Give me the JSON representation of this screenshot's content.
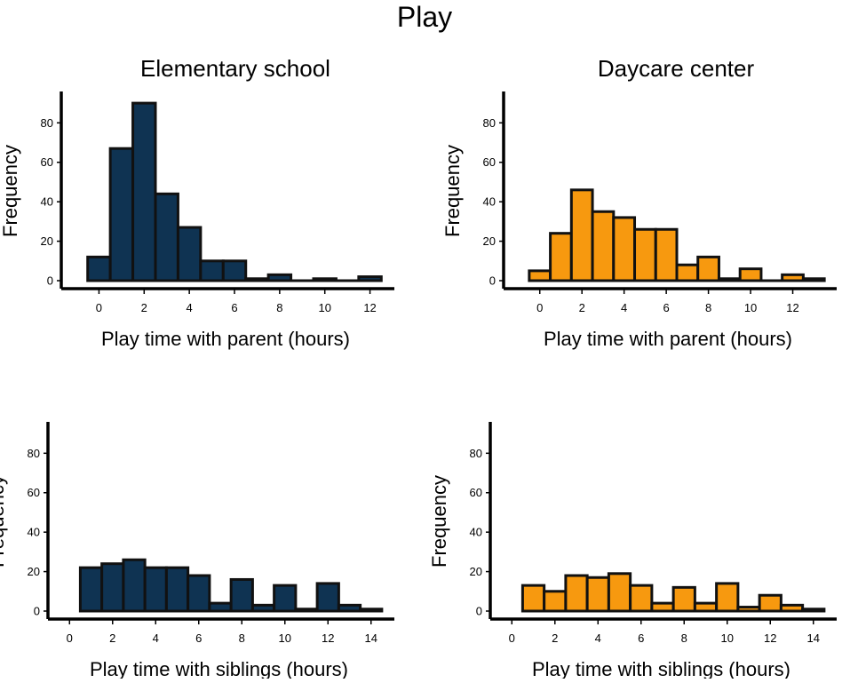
{
  "title": "Play",
  "column_titles": [
    "Elementary school",
    "Daycare center"
  ],
  "colors": {
    "elementary": "#0f3352",
    "daycare": "#f7990f",
    "outline": "#111111"
  },
  "chart_data": [
    {
      "type": "bar",
      "panel": "top-left",
      "group": "Elementary school",
      "xlabel": "Play time with parent (hours)",
      "ylabel": "Frequency",
      "bin_start": -0.5,
      "bin_width": 1,
      "values": [
        12,
        67,
        90,
        44,
        27,
        10,
        10,
        1,
        3,
        0,
        1,
        0,
        2
      ],
      "xticks": [
        0,
        2,
        4,
        6,
        8,
        10,
        12
      ],
      "yticks": [
        0,
        20,
        40,
        60,
        80
      ],
      "xlim": [
        -1,
        13
      ],
      "ylim": [
        0,
        95
      ]
    },
    {
      "type": "bar",
      "panel": "top-right",
      "group": "Daycare center",
      "xlabel": "Play time with parent (hours)",
      "ylabel": "Frequency",
      "bin_start": -0.5,
      "bin_width": 1,
      "values": [
        5,
        24,
        46,
        35,
        32,
        26,
        26,
        8,
        12,
        1,
        6,
        0,
        3,
        1
      ],
      "xticks": [
        0,
        2,
        4,
        6,
        8,
        10,
        12
      ],
      "yticks": [
        0,
        20,
        40,
        60,
        80
      ],
      "xlim": [
        -1,
        14
      ],
      "ylim": [
        0,
        95
      ]
    },
    {
      "type": "bar",
      "panel": "bottom-left",
      "group": "Elementary school",
      "xlabel": "Play time with siblings (hours)",
      "ylabel": "Frequency",
      "bin_start": 0.5,
      "bin_width": 1,
      "values": [
        22,
        24,
        26,
        22,
        22,
        18,
        4,
        16,
        3,
        13,
        1,
        14,
        3,
        1
      ],
      "xticks": [
        0,
        2,
        4,
        6,
        8,
        10,
        12,
        14
      ],
      "yticks": [
        0,
        20,
        40,
        60,
        80
      ],
      "xlim": [
        -0.3,
        15
      ],
      "ylim": [
        0,
        95
      ]
    },
    {
      "type": "bar",
      "panel": "bottom-right",
      "group": "Daycare center",
      "xlabel": "Play time with siblings (hours)",
      "ylabel": "Frequency",
      "bin_start": 0.5,
      "bin_width": 1,
      "values": [
        13,
        10,
        18,
        17,
        19,
        13,
        4,
        12,
        4,
        14,
        2,
        8,
        3,
        1
      ],
      "xticks": [
        0,
        2,
        4,
        6,
        8,
        10,
        12,
        14
      ],
      "yticks": [
        0,
        20,
        40,
        60,
        80
      ],
      "xlim": [
        -0.3,
        15
      ],
      "ylim": [
        0,
        95
      ]
    }
  ]
}
